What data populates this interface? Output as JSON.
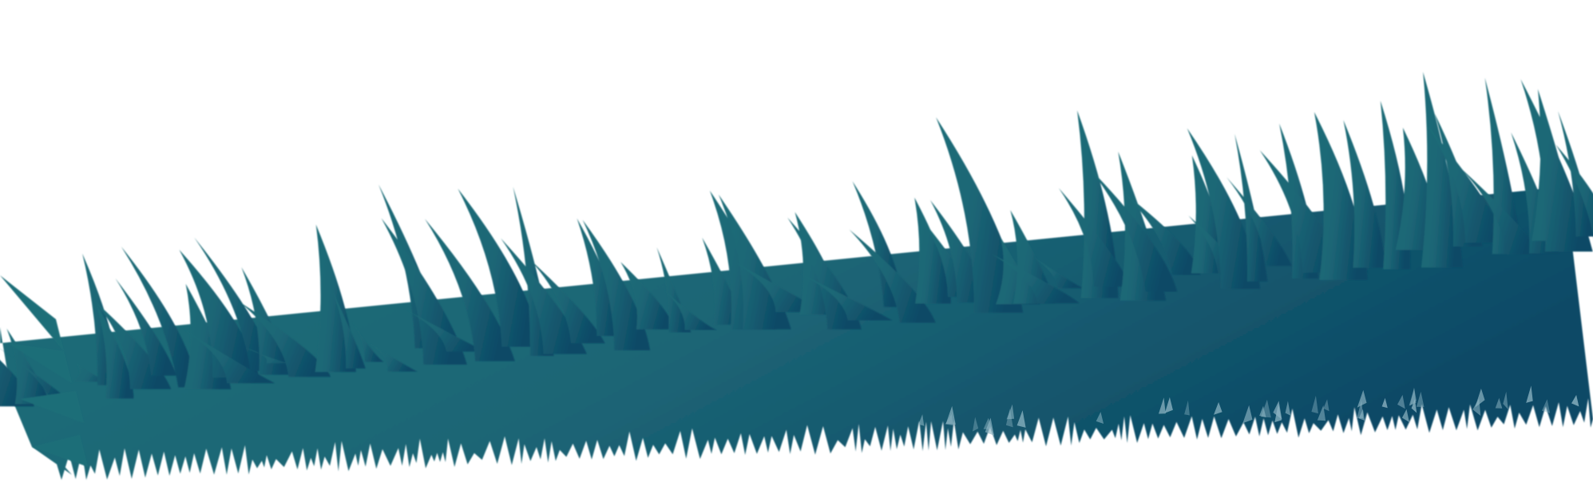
{
  "scene": {
    "subject": "grass",
    "background_color": "#ffffff",
    "grass_colors": {
      "left": "#1e6e78",
      "mid": "#1c6575",
      "right": "#0c4a66",
      "highlight": "#8fb6c4"
    }
  }
}
